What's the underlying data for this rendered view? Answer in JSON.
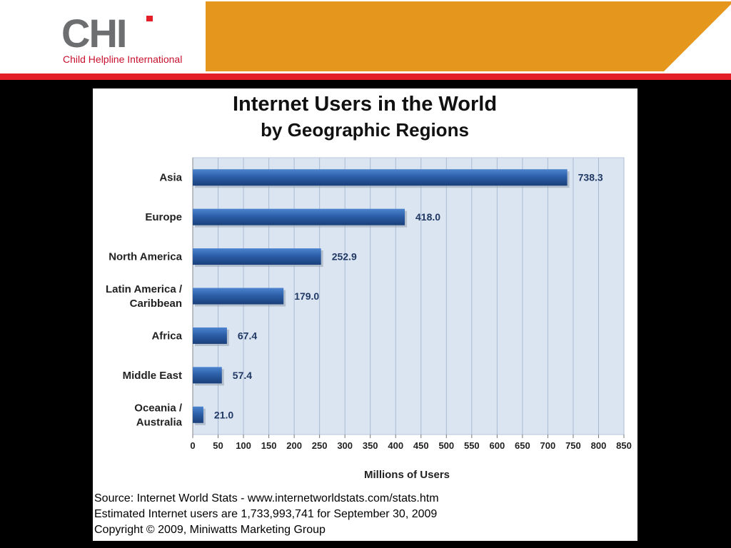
{
  "header": {
    "logo_text": "CHI",
    "org_name": "Child Helpline International",
    "brand_colors": {
      "logo_gray": "#6d6e70",
      "accent_red": "#e41e26",
      "banner_orange": "#e4961d"
    }
  },
  "chart_data": {
    "type": "bar",
    "orientation": "horizontal",
    "title": "Internet Users in the World",
    "subtitle": "by Geographic Regions",
    "categories": [
      [
        "Asia"
      ],
      [
        "Europe"
      ],
      [
        "North America"
      ],
      [
        "Latin America /",
        "Caribbean"
      ],
      [
        "Africa"
      ],
      [
        "Middle East"
      ],
      [
        "Oceania  /",
        "Australia"
      ]
    ],
    "values": [
      738.3,
      418.0,
      252.9,
      179.0,
      67.4,
      57.4,
      21.0
    ],
    "value_labels": [
      "738.3",
      "418.0",
      "252.9",
      "179.0",
      "67.4",
      "57.4",
      "21.0"
    ],
    "xlabel": "Millions of Users",
    "ylabel": "",
    "xlim": [
      0,
      850
    ],
    "xticks": [
      0,
      50,
      100,
      150,
      200,
      250,
      300,
      350,
      400,
      450,
      500,
      550,
      600,
      650,
      700,
      750,
      800,
      850
    ],
    "grid": "vertical",
    "bar_color": "#2c5fa8",
    "plot_background": "#dbe5f1"
  },
  "source": {
    "line1": "Source: Internet World Stats - www.internetworldstats.com/stats.htm",
    "line2": "Estimated Internet users are 1,733,993,741 for September 30, 2009",
    "line3": "Copyright © 2009, Miniwatts Marketing Group"
  }
}
